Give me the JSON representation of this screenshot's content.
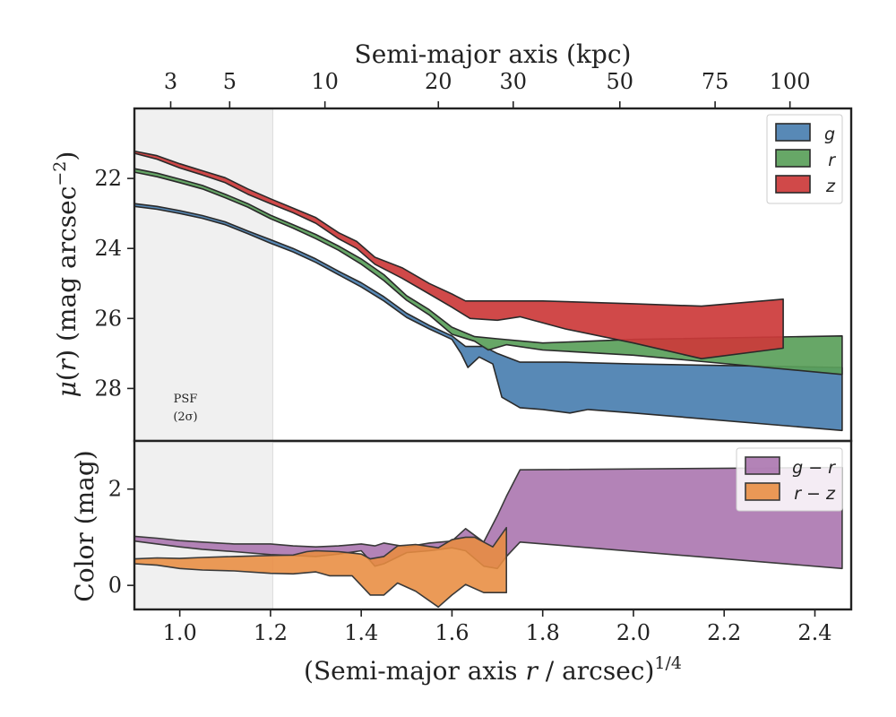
{
  "chart_data": [
    {
      "type": "area",
      "panel": "surface-brightness",
      "ylabel": "μ(r) (mag arcsec⁻²)",
      "xlim": [
        0.9,
        2.48
      ],
      "ylim": [
        29.5,
        20
      ],
      "y_inverted": true,
      "yticks": [
        22,
        24,
        26,
        28
      ],
      "xlabel_top": "Semi-major axis (kpc)",
      "top_ticks": [
        {
          "label": "3",
          "x": 0.98
        },
        {
          "label": "5",
          "x": 1.11
        },
        {
          "label": "10",
          "x": 1.32
        },
        {
          "label": "20",
          "x": 1.57
        },
        {
          "label": "30",
          "x": 1.735
        },
        {
          "label": "50",
          "x": 1.97
        },
        {
          "label": "75",
          "x": 2.18
        },
        {
          "label": "100",
          "x": 2.345
        }
      ],
      "shaded_region": {
        "x": [
          0.9,
          1.205
        ],
        "label_line1": "PSF",
        "label_line2": "(2σ)"
      },
      "legend_position": "upper right",
      "series": [
        {
          "name": "g",
          "color": "#4a7fb0",
          "upper": [
            [
              0.9,
              22.72
            ],
            [
              0.95,
              22.8
            ],
            [
              1.0,
              22.92
            ],
            [
              1.05,
              23.06
            ],
            [
              1.1,
              23.24
            ],
            [
              1.15,
              23.5
            ],
            [
              1.2,
              23.75
            ],
            [
              1.25,
              24.0
            ],
            [
              1.3,
              24.3
            ],
            [
              1.35,
              24.65
            ],
            [
              1.4,
              24.98
            ],
            [
              1.45,
              25.38
            ],
            [
              1.5,
              25.85
            ],
            [
              1.55,
              26.2
            ],
            [
              1.6,
              26.5
            ],
            [
              1.63,
              26.8
            ],
            [
              1.67,
              26.8
            ],
            [
              1.7,
              27.0
            ],
            [
              1.75,
              27.25
            ],
            [
              1.85,
              27.25
            ],
            [
              2.0,
              27.3
            ],
            [
              2.46,
              27.4
            ]
          ],
          "lower": [
            [
              0.9,
              22.8
            ],
            [
              0.95,
              22.88
            ],
            [
              1.0,
              23.0
            ],
            [
              1.05,
              23.14
            ],
            [
              1.1,
              23.32
            ],
            [
              1.15,
              23.58
            ],
            [
              1.2,
              23.85
            ],
            [
              1.25,
              24.1
            ],
            [
              1.3,
              24.4
            ],
            [
              1.35,
              24.75
            ],
            [
              1.4,
              25.1
            ],
            [
              1.45,
              25.5
            ],
            [
              1.5,
              25.97
            ],
            [
              1.55,
              26.3
            ],
            [
              1.6,
              26.6
            ],
            [
              1.62,
              27.0
            ],
            [
              1.635,
              27.4
            ],
            [
              1.66,
              27.1
            ],
            [
              1.69,
              27.3
            ],
            [
              1.71,
              28.25
            ],
            [
              1.75,
              28.55
            ],
            [
              1.8,
              28.6
            ],
            [
              1.86,
              28.7
            ],
            [
              1.9,
              28.6
            ],
            [
              2.0,
              28.7
            ],
            [
              2.46,
              29.2
            ]
          ]
        },
        {
          "name": "r",
          "color": "#5aa05a",
          "upper": [
            [
              0.9,
              21.72
            ],
            [
              0.95,
              21.85
            ],
            [
              1.0,
              22.02
            ],
            [
              1.05,
              22.2
            ],
            [
              1.1,
              22.45
            ],
            [
              1.15,
              22.72
            ],
            [
              1.2,
              23.05
            ],
            [
              1.25,
              23.32
            ],
            [
              1.3,
              23.6
            ],
            [
              1.35,
              23.93
            ],
            [
              1.4,
              24.3
            ],
            [
              1.45,
              24.75
            ],
            [
              1.5,
              25.35
            ],
            [
              1.55,
              25.75
            ],
            [
              1.6,
              26.25
            ],
            [
              1.65,
              26.52
            ],
            [
              1.7,
              26.58
            ],
            [
              1.8,
              26.7
            ],
            [
              2.0,
              26.6
            ],
            [
              2.46,
              26.5
            ]
          ],
          "lower": [
            [
              0.9,
              21.82
            ],
            [
              0.95,
              21.95
            ],
            [
              1.0,
              22.12
            ],
            [
              1.05,
              22.3
            ],
            [
              1.1,
              22.55
            ],
            [
              1.15,
              22.82
            ],
            [
              1.2,
              23.15
            ],
            [
              1.25,
              23.42
            ],
            [
              1.3,
              23.72
            ],
            [
              1.35,
              24.05
            ],
            [
              1.4,
              24.45
            ],
            [
              1.45,
              24.92
            ],
            [
              1.5,
              25.48
            ],
            [
              1.55,
              25.9
            ],
            [
              1.6,
              26.45
            ],
            [
              1.65,
              26.65
            ],
            [
              1.68,
              26.9
            ],
            [
              1.72,
              26.75
            ],
            [
              1.8,
              26.9
            ],
            [
              2.0,
              27.05
            ],
            [
              2.46,
              27.6
            ]
          ]
        },
        {
          "name": "z",
          "color": "#cc3a3a",
          "upper": [
            [
              0.9,
              21.22
            ],
            [
              0.95,
              21.35
            ],
            [
              1.0,
              21.58
            ],
            [
              1.05,
              21.78
            ],
            [
              1.1,
              21.98
            ],
            [
              1.15,
              22.3
            ],
            [
              1.2,
              22.58
            ],
            [
              1.25,
              22.85
            ],
            [
              1.3,
              23.12
            ],
            [
              1.35,
              23.55
            ],
            [
              1.39,
              23.8
            ],
            [
              1.43,
              24.25
            ],
            [
              1.49,
              24.55
            ],
            [
              1.55,
              25.0
            ],
            [
              1.6,
              25.3
            ],
            [
              1.63,
              25.5
            ],
            [
              1.7,
              25.5
            ],
            [
              1.8,
              25.5
            ],
            [
              2.0,
              25.58
            ],
            [
              2.15,
              25.65
            ],
            [
              2.33,
              25.45
            ]
          ],
          "lower": [
            [
              0.9,
              21.28
            ],
            [
              0.95,
              21.45
            ],
            [
              1.0,
              21.7
            ],
            [
              1.05,
              21.9
            ],
            [
              1.1,
              22.12
            ],
            [
              1.15,
              22.45
            ],
            [
              1.2,
              22.72
            ],
            [
              1.25,
              22.98
            ],
            [
              1.3,
              23.28
            ],
            [
              1.35,
              23.72
            ],
            [
              1.39,
              24.0
            ],
            [
              1.43,
              24.45
            ],
            [
              1.49,
              24.85
            ],
            [
              1.55,
              25.3
            ],
            [
              1.6,
              25.68
            ],
            [
              1.64,
              26.0
            ],
            [
              1.7,
              26.05
            ],
            [
              1.75,
              25.95
            ],
            [
              1.85,
              26.3
            ],
            [
              2.0,
              26.7
            ],
            [
              2.15,
              27.15
            ],
            [
              2.33,
              26.85
            ]
          ]
        }
      ]
    },
    {
      "type": "area",
      "panel": "color",
      "xlabel": "(Semi-major axis r / arcsec)^1/4",
      "xlabel_main": "(Semi-major axis ",
      "xlabel_var": "r",
      "xlabel_rest": " / arcsec)",
      "xlabel_exp": "1/4",
      "ylabel": "Color (mag)",
      "xlim": [
        0.9,
        2.48
      ],
      "ylim": [
        -0.5,
        3.0
      ],
      "yticks": [
        0,
        2
      ],
      "xticks": [
        1.0,
        1.2,
        1.4,
        1.6,
        1.8,
        2.0,
        2.2,
        2.4
      ],
      "legend_position": "upper right",
      "series": [
        {
          "name": "g − r",
          "color": "#a872ad",
          "upper": [
            [
              0.9,
              1.02
            ],
            [
              0.95,
              0.98
            ],
            [
              1.0,
              0.93
            ],
            [
              1.05,
              0.9
            ],
            [
              1.12,
              0.86
            ],
            [
              1.2,
              0.86
            ],
            [
              1.25,
              0.82
            ],
            [
              1.3,
              0.8
            ],
            [
              1.35,
              0.82
            ],
            [
              1.4,
              0.86
            ],
            [
              1.43,
              0.82
            ],
            [
              1.45,
              0.88
            ],
            [
              1.5,
              0.8
            ],
            [
              1.55,
              0.88
            ],
            [
              1.6,
              0.92
            ],
            [
              1.63,
              1.18
            ],
            [
              1.67,
              0.9
            ],
            [
              1.7,
              1.45
            ],
            [
              1.72,
              1.85
            ],
            [
              1.75,
              2.4
            ],
            [
              2.46,
              2.45
            ]
          ],
          "lower": [
            [
              0.9,
              0.92
            ],
            [
              0.95,
              0.86
            ],
            [
              1.0,
              0.8
            ],
            [
              1.05,
              0.75
            ],
            [
              1.12,
              0.7
            ],
            [
              1.2,
              0.64
            ],
            [
              1.25,
              0.62
            ],
            [
              1.3,
              0.6
            ],
            [
              1.35,
              0.65
            ],
            [
              1.4,
              0.72
            ],
            [
              1.43,
              0.4
            ],
            [
              1.45,
              0.45
            ],
            [
              1.5,
              0.68
            ],
            [
              1.55,
              0.72
            ],
            [
              1.6,
              0.78
            ],
            [
              1.63,
              0.72
            ],
            [
              1.67,
              0.4
            ],
            [
              1.7,
              0.35
            ],
            [
              1.72,
              0.6
            ],
            [
              1.75,
              0.9
            ],
            [
              2.46,
              0.35
            ]
          ]
        },
        {
          "name": "r − z",
          "color": "#e88c40",
          "upper": [
            [
              0.9,
              0.55
            ],
            [
              0.95,
              0.57
            ],
            [
              1.0,
              0.56
            ],
            [
              1.05,
              0.58
            ],
            [
              1.12,
              0.6
            ],
            [
              1.2,
              0.62
            ],
            [
              1.25,
              0.63
            ],
            [
              1.28,
              0.7
            ],
            [
              1.3,
              0.72
            ],
            [
              1.35,
              0.7
            ],
            [
              1.4,
              0.65
            ],
            [
              1.42,
              0.55
            ],
            [
              1.45,
              0.6
            ],
            [
              1.48,
              0.82
            ],
            [
              1.52,
              0.85
            ],
            [
              1.57,
              0.78
            ],
            [
              1.6,
              0.95
            ],
            [
              1.63,
              1.0
            ],
            [
              1.65,
              1.0
            ],
            [
              1.69,
              0.8
            ],
            [
              1.72,
              1.2
            ]
          ],
          "lower": [
            [
              0.9,
              0.45
            ],
            [
              0.95,
              0.42
            ],
            [
              1.0,
              0.35
            ],
            [
              1.05,
              0.32
            ],
            [
              1.12,
              0.3
            ],
            [
              1.2,
              0.25
            ],
            [
              1.25,
              0.24
            ],
            [
              1.3,
              0.28
            ],
            [
              1.33,
              0.2
            ],
            [
              1.38,
              0.2
            ],
            [
              1.42,
              -0.2
            ],
            [
              1.45,
              -0.2
            ],
            [
              1.48,
              0.05
            ],
            [
              1.52,
              -0.12
            ],
            [
              1.57,
              -0.45
            ],
            [
              1.6,
              -0.2
            ],
            [
              1.63,
              0.02
            ],
            [
              1.67,
              -0.15
            ],
            [
              1.7,
              -0.15
            ],
            [
              1.72,
              -0.15
            ]
          ]
        }
      ]
    }
  ]
}
